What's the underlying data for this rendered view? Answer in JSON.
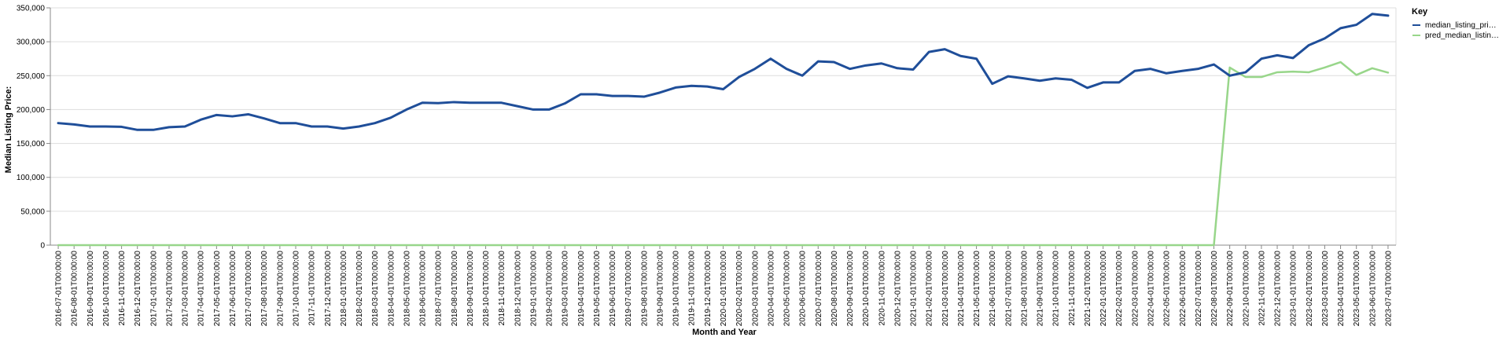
{
  "chart_data": {
    "type": "line",
    "xlabel": "Month and Year",
    "ylabel": "Median Listing Price:",
    "ylim": [
      0,
      350000
    ],
    "yticks": [
      "0",
      "50,000",
      "100,000",
      "150,000",
      "200,000",
      "250,000",
      "300,000",
      "350,000"
    ],
    "ytick_values": [
      0,
      50000,
      100000,
      150000,
      200000,
      250000,
      300000,
      350000
    ],
    "grid": true,
    "legend": {
      "title": "Key",
      "placement": "top-right"
    },
    "x": [
      "2016-07-01T00:00:00",
      "2016-08-01T00:00:00",
      "2016-09-01T00:00:00",
      "2016-10-01T00:00:00",
      "2016-11-01T00:00:00",
      "2016-12-01T00:00:00",
      "2017-01-01T00:00:00",
      "2017-02-01T00:00:00",
      "2017-03-01T00:00:00",
      "2017-04-01T00:00:00",
      "2017-05-01T00:00:00",
      "2017-06-01T00:00:00",
      "2017-07-01T00:00:00",
      "2017-08-01T00:00:00",
      "2017-09-01T00:00:00",
      "2017-10-01T00:00:00",
      "2017-11-01T00:00:00",
      "2017-12-01T00:00:00",
      "2018-01-01T00:00:00",
      "2018-02-01T00:00:00",
      "2018-03-01T00:00:00",
      "2018-04-01T00:00:00",
      "2018-05-01T00:00:00",
      "2018-06-01T00:00:00",
      "2018-07-01T00:00:00",
      "2018-08-01T00:00:00",
      "2018-09-01T00:00:00",
      "2018-10-01T00:00:00",
      "2018-11-01T00:00:00",
      "2018-12-01T00:00:00",
      "2019-01-01T00:00:00",
      "2019-02-01T00:00:00",
      "2019-03-01T00:00:00",
      "2019-04-01T00:00:00",
      "2019-05-01T00:00:00",
      "2019-06-01T00:00:00",
      "2019-07-01T00:00:00",
      "2019-08-01T00:00:00",
      "2019-09-01T00:00:00",
      "2019-10-01T00:00:00",
      "2019-11-01T00:00:00",
      "2019-12-01T00:00:00",
      "2020-01-01T00:00:00",
      "2020-02-01T00:00:00",
      "2020-03-01T00:00:00",
      "2020-04-01T00:00:00",
      "2020-05-01T00:00:00",
      "2020-06-01T00:00:00",
      "2020-07-01T00:00:00",
      "2020-08-01T00:00:00",
      "2020-09-01T00:00:00",
      "2020-10-01T00:00:00",
      "2020-11-01T00:00:00",
      "2020-12-01T00:00:00",
      "2021-01-01T00:00:00",
      "2021-02-01T00:00:00",
      "2021-03-01T00:00:00",
      "2021-04-01T00:00:00",
      "2021-05-01T00:00:00",
      "2021-06-01T00:00:00",
      "2021-07-01T00:00:00",
      "2021-08-01T00:00:00",
      "2021-09-01T00:00:00",
      "2021-10-01T00:00:00",
      "2021-11-01T00:00:00",
      "2021-12-01T00:00:00",
      "2022-01-01T00:00:00",
      "2022-02-01T00:00:00",
      "2022-03-01T00:00:00",
      "2022-04-01T00:00:00",
      "2022-05-01T00:00:00",
      "2022-06-01T00:00:00",
      "2022-07-01T00:00:00",
      "2022-08-01T00:00:00",
      "2022-09-01T00:00:00",
      "2022-10-01T00:00:00",
      "2022-11-01T00:00:00",
      "2022-12-01T00:00:00",
      "2023-01-01T00:00:00",
      "2023-02-01T00:00:00",
      "2023-03-01T00:00:00",
      "2023-04-01T00:00:00",
      "2023-05-01T00:00:00",
      "2023-06-01T00:00:00",
      "2023-07-01T00:00:00"
    ],
    "series": [
      {
        "name": "median_listing_pri…",
        "color": "#1f4e99",
        "values": [
          180000,
          178000,
          175000,
          175000,
          174500,
          170000,
          170000,
          174000,
          175000,
          185000,
          192000,
          190000,
          193000,
          187000,
          180000,
          180000,
          175000,
          175000,
          172000,
          175000,
          180000,
          188000,
          200000,
          210000,
          209500,
          211000,
          210000,
          210000,
          210000,
          205000,
          200000,
          200000,
          209000,
          222500,
          222500,
          220000,
          220000,
          219000,
          225000,
          232500,
          235000,
          234000,
          230000,
          248000,
          260000,
          275000,
          260000,
          250000,
          271000,
          270000,
          260000,
          265000,
          268000,
          261000,
          259000,
          285000,
          289000,
          279000,
          275000,
          238000,
          249000,
          246000,
          242500,
          246000,
          244000,
          232000,
          240000,
          240000,
          257000,
          260000,
          253500,
          257000,
          260000,
          266500,
          250000,
          255000,
          275000,
          280000,
          276000,
          295000,
          305000,
          320000,
          325000,
          341000,
          338500
        ]
      },
      {
        "name": "pred_median_listin…",
        "color": "#98d68a",
        "values": [
          0,
          0,
          0,
          0,
          0,
          0,
          0,
          0,
          0,
          0,
          0,
          0,
          0,
          0,
          0,
          0,
          0,
          0,
          0,
          0,
          0,
          0,
          0,
          0,
          0,
          0,
          0,
          0,
          0,
          0,
          0,
          0,
          0,
          0,
          0,
          0,
          0,
          0,
          0,
          0,
          0,
          0,
          0,
          0,
          0,
          0,
          0,
          0,
          0,
          0,
          0,
          0,
          0,
          0,
          0,
          0,
          0,
          0,
          0,
          0,
          0,
          0,
          0,
          0,
          0,
          0,
          0,
          0,
          0,
          0,
          0,
          0,
          0,
          0,
          262000,
          248000,
          248000,
          255000,
          256000,
          255000,
          262000,
          270000,
          251000,
          261000,
          254500
        ]
      }
    ]
  }
}
